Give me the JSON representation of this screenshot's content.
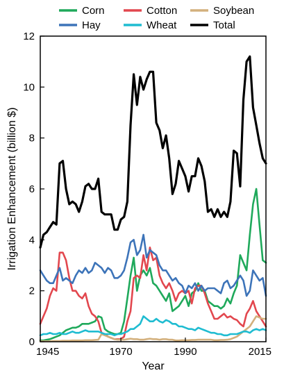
{
  "chart_data": {
    "type": "line",
    "xlabel": "Year",
    "ylabel": "Irrigation Enhancement (billion $)",
    "xlim": [
      1945,
      2015
    ],
    "ylim": [
      0,
      12
    ],
    "xticks": [
      1945,
      1970,
      1990,
      2015
    ],
    "yticks": [
      0,
      2,
      4,
      6,
      8,
      10,
      12
    ],
    "grid": false,
    "legend_position": "top (above plot, 3 columns)",
    "x": [
      1945,
      1946,
      1947,
      1948,
      1949,
      1950,
      1951,
      1952,
      1953,
      1954,
      1955,
      1956,
      1957,
      1958,
      1959,
      1960,
      1961,
      1962,
      1963,
      1964,
      1965,
      1966,
      1967,
      1968,
      1969,
      1970,
      1971,
      1972,
      1973,
      1974,
      1975,
      1976,
      1977,
      1978,
      1979,
      1980,
      1981,
      1982,
      1983,
      1984,
      1985,
      1986,
      1987,
      1988,
      1989,
      1990,
      1991,
      1992,
      1993,
      1994,
      1995,
      1996,
      1997,
      1998,
      1999,
      2000,
      2001,
      2002,
      2003,
      2004,
      2005,
      2006,
      2007,
      2008,
      2009,
      2010,
      2011,
      2012,
      2013,
      2014,
      2015
    ],
    "series": [
      {
        "name": "Corn",
        "color": "#1fa95b",
        "values": [
          0.05,
          0.05,
          0.08,
          0.1,
          0.15,
          0.2,
          0.25,
          0.35,
          0.45,
          0.5,
          0.55,
          0.55,
          0.6,
          0.7,
          0.7,
          0.7,
          0.75,
          0.8,
          1.0,
          0.95,
          0.5,
          0.4,
          0.35,
          0.3,
          0.3,
          0.35,
          0.8,
          1.7,
          2.6,
          3.3,
          2.0,
          2.6,
          2.8,
          2.6,
          2.9,
          2.3,
          2.2,
          2.0,
          1.8,
          1.6,
          1.9,
          1.2,
          1.3,
          1.4,
          1.6,
          1.8,
          1.4,
          1.9,
          2.0,
          2.3,
          2.0,
          2.0,
          1.6,
          1.5,
          1.4,
          1.4,
          1.3,
          1.4,
          1.7,
          1.5,
          1.9,
          2.2,
          3.4,
          3.1,
          2.8,
          4.2,
          5.4,
          6.0,
          4.6,
          3.2,
          3.1
        ]
      },
      {
        "name": "Cotton",
        "color": "#e2474e",
        "values": [
          0.7,
          1.0,
          1.3,
          1.8,
          2.1,
          2.0,
          3.5,
          3.5,
          3.2,
          2.5,
          2.0,
          2.0,
          1.8,
          1.7,
          1.9,
          1.4,
          1.1,
          1.0,
          0.8,
          0.35,
          0.3,
          0.2,
          0.15,
          0.1,
          0.1,
          0.1,
          0.2,
          0.8,
          1.2,
          2.5,
          2.6,
          2.5,
          3.4,
          2.8,
          3.7,
          3.2,
          3.3,
          2.6,
          2.3,
          2.1,
          2.3,
          2.0,
          1.6,
          1.9,
          2.0,
          1.9,
          2.0,
          1.5,
          2.1,
          2.2,
          2.2,
          1.9,
          1.5,
          1.2,
          0.9,
          0.9,
          1.0,
          1.1,
          0.95,
          1.0,
          0.9,
          0.85,
          0.7,
          0.6,
          1.1,
          1.3,
          1.6,
          1.2,
          1.0,
          0.8,
          0.6
        ]
      },
      {
        "name": "Soybean",
        "color": "#d3b07d",
        "values": [
          0.02,
          0.02,
          0.02,
          0.02,
          0.03,
          0.03,
          0.03,
          0.04,
          0.04,
          0.04,
          0.05,
          0.05,
          0.05,
          0.05,
          0.06,
          0.06,
          0.06,
          0.07,
          0.08,
          0.3,
          0.25,
          0.2,
          0.15,
          0.1,
          0.08,
          0.08,
          0.08,
          0.1,
          0.12,
          0.1,
          0.1,
          0.08,
          0.08,
          0.1,
          0.12,
          0.1,
          0.1,
          0.08,
          0.1,
          0.1,
          0.08,
          0.08,
          0.05,
          0.05,
          0.06,
          0.06,
          0.06,
          0.07,
          0.07,
          0.08,
          0.08,
          0.08,
          0.08,
          0.08,
          0.06,
          0.06,
          0.07,
          0.07,
          0.08,
          0.1,
          0.15,
          0.2,
          0.3,
          0.4,
          0.5,
          0.6,
          0.8,
          1.0,
          0.95,
          0.9,
          0.9
        ]
      },
      {
        "name": "Hay",
        "color": "#3d74b9",
        "values": [
          2.8,
          2.6,
          2.4,
          2.3,
          2.3,
          2.6,
          2.9,
          2.4,
          2.5,
          2.4,
          2.3,
          2.6,
          2.8,
          2.7,
          2.9,
          2.7,
          2.8,
          3.1,
          3.0,
          2.9,
          2.7,
          2.9,
          2.8,
          2.5,
          2.5,
          2.6,
          2.8,
          3.3,
          3.9,
          4.0,
          3.4,
          3.6,
          4.2,
          3.3,
          3.6,
          3.5,
          3.4,
          3.0,
          2.8,
          2.8,
          2.6,
          2.4,
          2.5,
          2.3,
          2.2,
          1.9,
          2.2,
          2.1,
          2.3,
          2.0,
          2.2,
          2.0,
          2.1,
          2.1,
          2.1,
          2.0,
          1.9,
          2.3,
          2.4,
          2.1,
          2.2,
          2.4,
          2.6,
          2.4,
          1.8,
          2.0,
          2.8,
          2.6,
          2.4,
          2.5,
          1.8
        ]
      },
      {
        "name": "Wheat",
        "color": "#1fbcd1",
        "values": [
          0.25,
          0.3,
          0.3,
          0.35,
          0.3,
          0.3,
          0.35,
          0.3,
          0.3,
          0.35,
          0.4,
          0.35,
          0.35,
          0.4,
          0.45,
          0.4,
          0.4,
          0.4,
          0.4,
          0.35,
          0.3,
          0.3,
          0.3,
          0.25,
          0.3,
          0.3,
          0.35,
          0.4,
          0.5,
          0.5,
          0.6,
          0.7,
          1.0,
          0.9,
          0.8,
          0.8,
          0.9,
          0.8,
          0.75,
          0.85,
          0.8,
          0.7,
          0.7,
          0.6,
          0.6,
          0.55,
          0.5,
          0.5,
          0.45,
          0.55,
          0.5,
          0.45,
          0.4,
          0.35,
          0.35,
          0.3,
          0.3,
          0.25,
          0.25,
          0.3,
          0.3,
          0.3,
          0.35,
          0.4,
          0.4,
          0.35,
          0.45,
          0.5,
          0.45,
          0.5,
          0.45
        ]
      },
      {
        "name": "Total",
        "color": "#000000",
        "values": [
          3.7,
          4.2,
          4.3,
          4.5,
          4.7,
          4.6,
          7.0,
          7.1,
          6.0,
          5.4,
          5.5,
          5.4,
          5.1,
          5.5,
          6.1,
          6.2,
          6.0,
          6.0,
          6.4,
          5.1,
          5.0,
          5.0,
          5.0,
          4.4,
          4.4,
          4.8,
          4.9,
          5.5,
          8.5,
          10.5,
          9.3,
          10.4,
          9.9,
          10.3,
          10.6,
          10.6,
          8.6,
          8.3,
          7.6,
          8.1,
          7.2,
          5.8,
          6.2,
          7.1,
          6.8,
          6.5,
          5.9,
          6.5,
          6.5,
          7.2,
          6.9,
          6.3,
          5.1,
          5.2,
          4.9,
          5.2,
          4.9,
          5.1,
          4.9,
          5.5,
          7.5,
          7.4,
          6.1,
          9.5,
          11.0,
          11.2,
          9.2,
          8.5,
          7.8,
          7.2,
          7.0
        ]
      }
    ]
  }
}
